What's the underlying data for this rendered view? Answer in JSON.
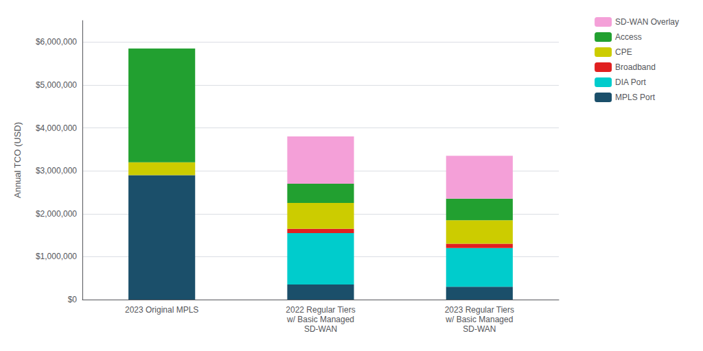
{
  "chart_data": {
    "type": "bar",
    "stacked": true,
    "ylabel": "Annual TCO (USD)",
    "categories": [
      "2023 Original MPLS",
      "2022 Regular Tiers\nw/ Basic Managed\nSD-WAN",
      "2023 Regular Tiers\nw/ Basic Managed\nSD-WAN"
    ],
    "series": [
      {
        "name": "MPLS Port",
        "color": "#1b4f6a",
        "values": [
          2900000,
          350000,
          300000
        ]
      },
      {
        "name": "DIA Port",
        "color": "#00cccc",
        "values": [
          0,
          1200000,
          900000
        ]
      },
      {
        "name": "Broadband",
        "color": "#e02020",
        "values": [
          0,
          100000,
          100000
        ]
      },
      {
        "name": "CPE",
        "color": "#cccc00",
        "values": [
          300000,
          600000,
          550000
        ]
      },
      {
        "name": "Access",
        "color": "#22a030",
        "values": [
          2650000,
          450000,
          500000
        ]
      },
      {
        "name": "SD-WAN Overlay",
        "color": "#f4a0d8",
        "values": [
          0,
          1100000,
          1000000
        ]
      }
    ],
    "ylim": [
      0,
      6500000
    ],
    "yticks": [
      {
        "value": 0,
        "label": "$0"
      },
      {
        "value": 1000000,
        "label": "$1,000,000"
      },
      {
        "value": 2000000,
        "label": "$2,000,000"
      },
      {
        "value": 3000000,
        "label": "$3,000,000"
      },
      {
        "value": 4000000,
        "label": "$4,000,000"
      },
      {
        "value": 5000000,
        "label": "$5,000,000"
      },
      {
        "value": 6000000,
        "label": "$6,000,000"
      }
    ],
    "grid": true,
    "legend": "upper right"
  }
}
